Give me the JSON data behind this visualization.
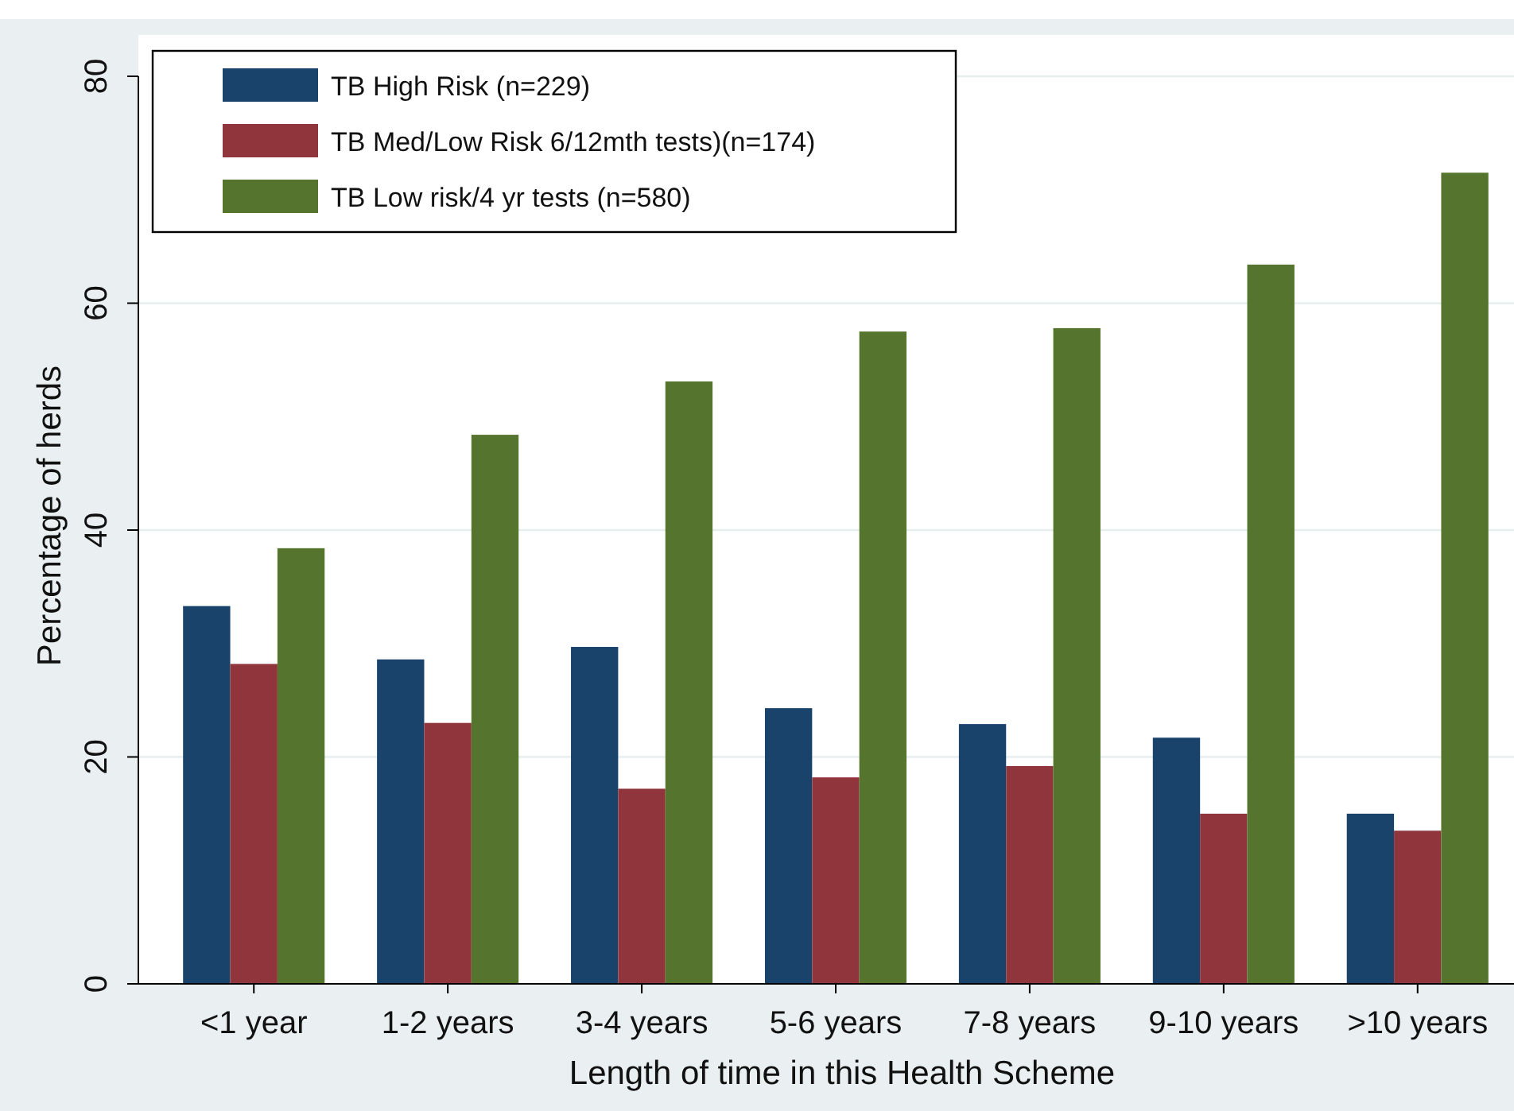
{
  "chart_data": {
    "type": "bar",
    "xlabel": "Length of time in this Health Scheme",
    "ylabel": "Percentage of herds",
    "categories": [
      "<1 year",
      "1-2 years",
      "3-4 years",
      "5-6 years",
      "7-8 years",
      "9-10 years",
      ">10 years"
    ],
    "series": [
      {
        "name": "TB High Risk (n=229)",
        "color": "#1a436c",
        "values": [
          33.3,
          28.6,
          29.7,
          24.3,
          22.9,
          21.7,
          15.0
        ]
      },
      {
        "name": "TB Med/Low Risk 6/12mth tests)(n=174)",
        "color": "#90353b",
        "values": [
          28.2,
          23.0,
          17.2,
          18.2,
          19.2,
          15.0,
          13.5
        ]
      },
      {
        "name": "TB Low risk/4 yr tests (n=580)",
        "color": "#55752f",
        "values": [
          38.4,
          48.4,
          53.1,
          57.5,
          57.8,
          63.4,
          71.5
        ]
      }
    ],
    "ylim": [
      0,
      80
    ],
    "yticks": [
      0,
      20,
      40,
      60,
      80
    ],
    "grid": "y",
    "legend": "top left"
  }
}
